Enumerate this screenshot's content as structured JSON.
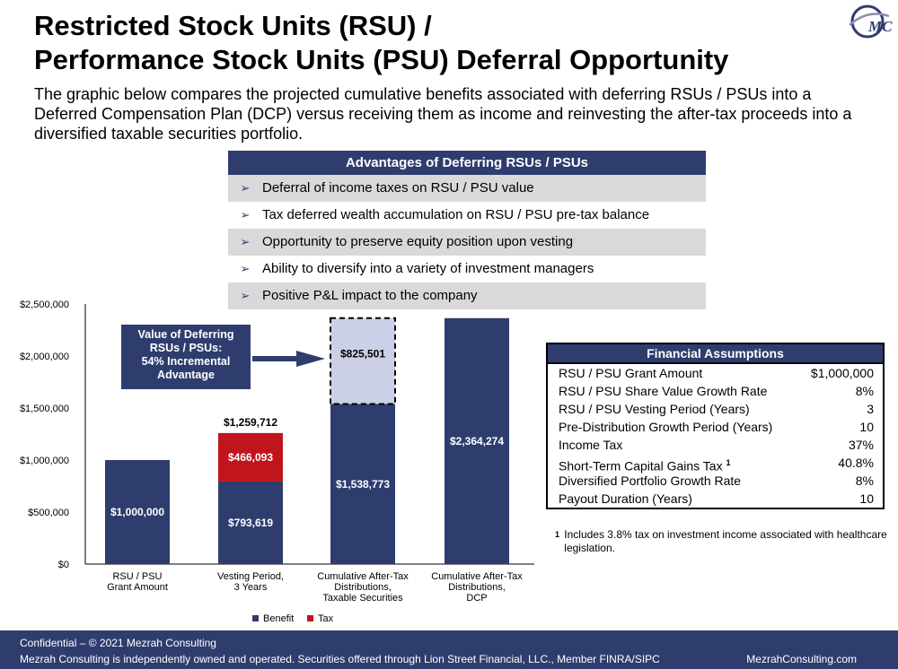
{
  "header": {
    "title_line1": "Restricted Stock Units (RSU) /",
    "title_line2": "Performance Stock Units (PSU) Deferral Opportunity",
    "subtitle": "The graphic below compares the projected cumulative benefits associated with deferring RSUs / PSUs into a Deferred Compensation Plan (DCP) versus receiving them as income and reinvesting the after-tax proceeds into a diversified taxable securities portfolio.",
    "logo_text": "MC"
  },
  "advantages": {
    "title": "Advantages of Deferring RSUs / PSUs",
    "bullet": "➢",
    "items": [
      "Deferral of income taxes on RSU / PSU value",
      "Tax deferred wealth accumulation on RSU / PSU pre-tax balance",
      "Opportunity to preserve equity position upon vesting",
      "Ability to diversify into a variety of investment managers",
      "Positive P&L impact to the company"
    ]
  },
  "chart_data": {
    "type": "bar",
    "stacked": true,
    "categories": [
      [
        "RSU / PSU",
        "Grant Amount"
      ],
      [
        "Vesting Period,",
        "3 Years"
      ],
      [
        "Cumulative After-Tax",
        "Distributions,",
        "Taxable Securities"
      ],
      [
        "Cumulative After-Tax",
        "Distributions,",
        "DCP"
      ]
    ],
    "series": [
      {
        "name": "Benefit",
        "values": [
          1000000,
          793619,
          1538773,
          2364274
        ],
        "labels": [
          "$1,000,000",
          "$793,619",
          "$1,538,773",
          "$2,364,274"
        ],
        "color": "#2f3d6e"
      },
      {
        "name": "Tax",
        "values": [
          0,
          466093,
          0,
          0
        ],
        "labels": [
          "",
          "$466,093",
          "",
          ""
        ],
        "color": "#c0151d"
      }
    ],
    "totals": [
      "",
      "$1,259,712",
      "",
      ""
    ],
    "incremental": {
      "category_index": 2,
      "value": 825501,
      "label": "$825,501",
      "color": "#ccd0e6"
    },
    "callout": [
      "Value of Deferring",
      "RSUs / PSUs:",
      "54% Incremental",
      "Advantage"
    ],
    "yticks": [
      "$0",
      "$500,000",
      "$1,000,000",
      "$1,500,000",
      "$2,000,000",
      "$2,500,000"
    ],
    "ylim": [
      0,
      2500000
    ],
    "legend_placement": "bottom"
  },
  "assumptions": {
    "title": "Financial Assumptions",
    "rows": [
      {
        "label": "RSU / PSU Grant Amount",
        "value": "$1,000,000"
      },
      {
        "label": "RSU / PSU Share Value Growth Rate",
        "value": "8%"
      },
      {
        "label": "RSU / PSU Vesting Period (Years)",
        "value": "3"
      },
      {
        "label": "Pre-Distribution Growth Period (Years)",
        "value": "10"
      },
      {
        "label": "Income Tax",
        "value": "37%"
      },
      {
        "label": "Short-Term Capital Gains Tax",
        "sup": "1",
        "value": "40.8%"
      },
      {
        "label": "Diversified Portfolio Growth Rate",
        "value": "8%"
      },
      {
        "label": "Payout Duration (Years)",
        "value": "10"
      }
    ]
  },
  "footnote": {
    "mark": "1",
    "text": "Includes 3.8% tax on investment income associated with healthcare legislation."
  },
  "footer": {
    "confidential": "Confidential – © 2021 Mezrah Consulting",
    "disclaimer": "Mezrah Consulting is independently owned and operated. Securities offered through Lion Street Financial, LLC., Member FINRA/SIPC",
    "website": "MezrahConsulting.com"
  }
}
